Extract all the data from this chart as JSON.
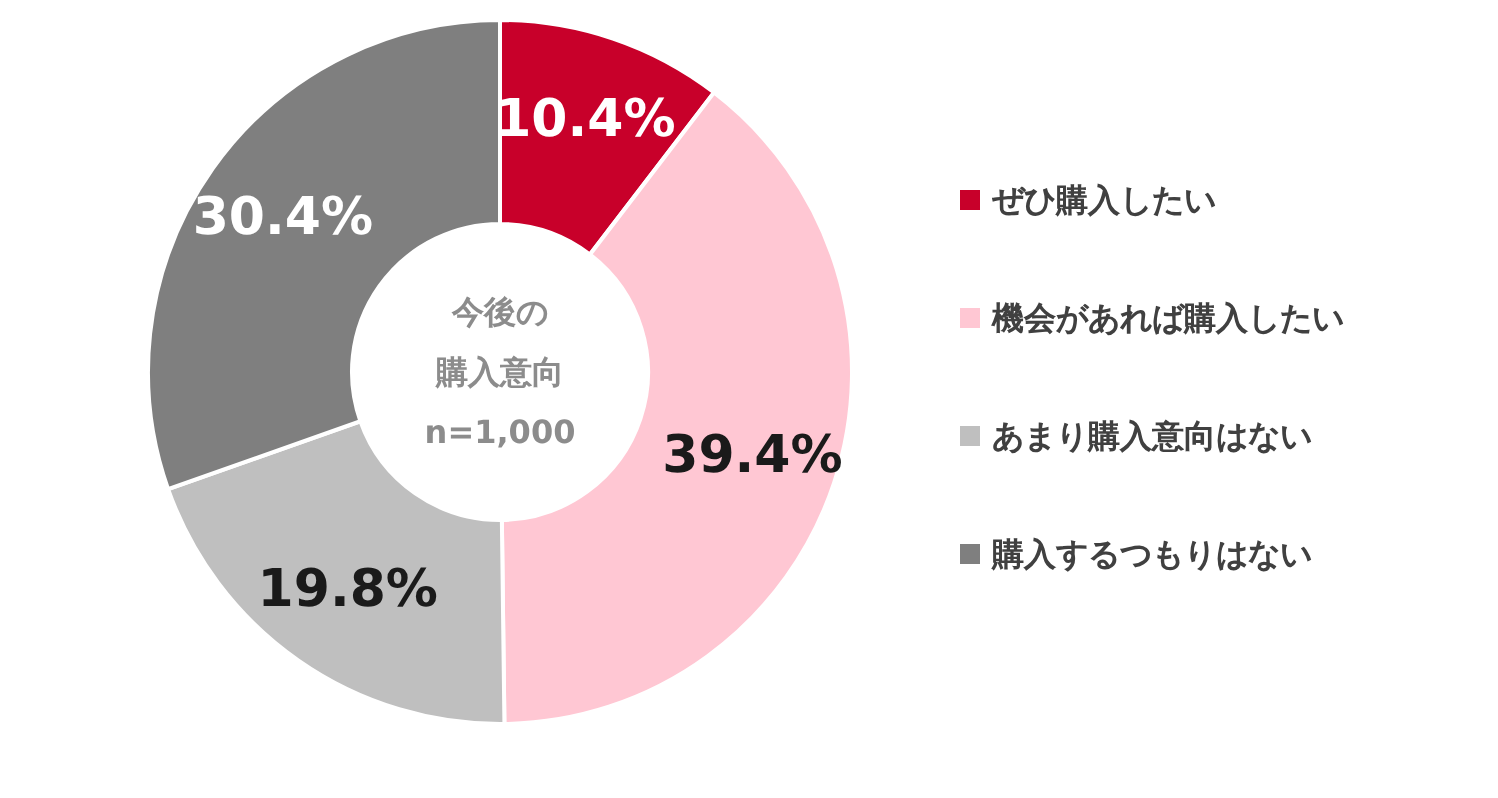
{
  "chart_data": {
    "type": "donut",
    "categories": [
      "ぜひ購入したい",
      "機会があれば購入したい",
      "あまり購入意向はない",
      "購入するつもりはない"
    ],
    "values": [
      10.4,
      39.4,
      19.8,
      30.4
    ],
    "colors": [
      "#c8002a",
      "#ffc7d3",
      "#bfbfbf",
      "#7f7f7f"
    ],
    "value_labels": [
      "10.4%",
      "39.4%",
      "19.8%",
      "30.4%"
    ],
    "annotations": [
      "今後の",
      "購入意向",
      "n=1,000"
    ],
    "legend": "right"
  }
}
